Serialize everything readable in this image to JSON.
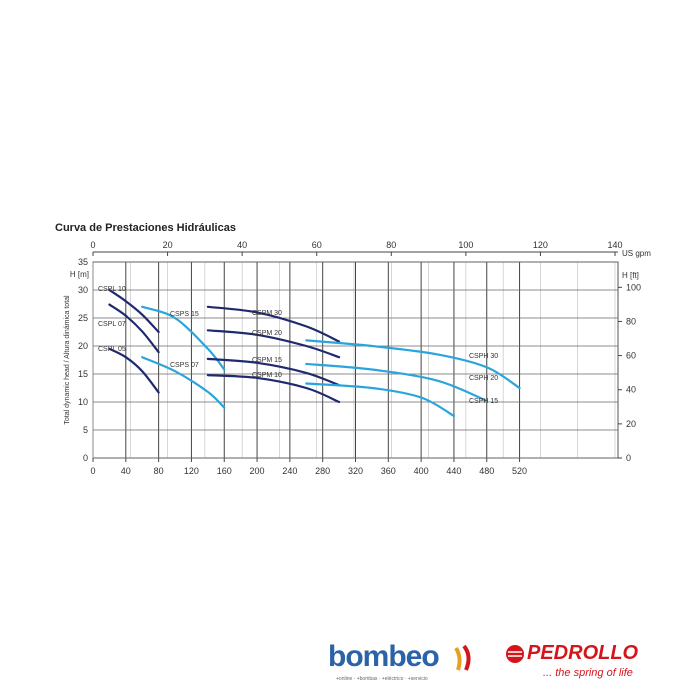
{
  "chart_data": {
    "type": "line",
    "title": "Curva de Prestaciones Hidráulicas",
    "xlabel": "",
    "ylabel": "Total dynamic head / Altura dinámica total",
    "left_axis_unit": "H [m]",
    "right_axis_unit": "H [ft]",
    "top_axis_unit": "US gpm",
    "xlim": [
      0,
      640
    ],
    "ylim": [
      0,
      35
    ],
    "x_ticks": [
      0,
      40,
      80,
      120,
      160,
      200,
      240,
      280,
      320,
      360,
      400,
      440,
      480,
      520
    ],
    "y_ticks": [
      0,
      5,
      10,
      15,
      20,
      25,
      30,
      35
    ],
    "top_ticks": [
      0,
      20,
      40,
      60,
      80,
      100,
      120,
      140
    ],
    "top_scale_gpm_per_x": 0.22,
    "right_ticks": [
      0,
      20,
      40,
      60,
      80,
      100
    ],
    "right_scale_ft_per_m": 3.281,
    "grid": true,
    "series": [
      {
        "name": "CSPL 10",
        "color": "#1f2a6e",
        "x": [
          20,
          40,
          60,
          80
        ],
        "y": [
          30,
          28,
          25.6,
          22.5
        ]
      },
      {
        "name": "CSPL 07",
        "color": "#1f2a6e",
        "x": [
          20,
          40,
          60,
          80
        ],
        "y": [
          27.4,
          25.4,
          22.6,
          18.9
        ]
      },
      {
        "name": "CSPL 05",
        "color": "#1f2a6e",
        "x": [
          20,
          40,
          60,
          80
        ],
        "y": [
          19.5,
          18.0,
          15.5,
          11.7
        ]
      },
      {
        "name": "CSPS 15",
        "color": "#2aa5dc",
        "x": [
          60,
          100,
          140,
          160
        ],
        "y": [
          27,
          25,
          19.5,
          15.8
        ]
      },
      {
        "name": "CSPS 07",
        "color": "#2aa5dc",
        "x": [
          60,
          100,
          140,
          160
        ],
        "y": [
          18,
          15.5,
          11.8,
          9
        ]
      },
      {
        "name": "CSPM 30",
        "color": "#1f2a6e",
        "x": [
          140,
          200,
          260,
          300
        ],
        "y": [
          27,
          26,
          23.5,
          20.8
        ]
      },
      {
        "name": "CSPM 20",
        "color": "#1f2a6e",
        "x": [
          140,
          200,
          260,
          300
        ],
        "y": [
          22.8,
          22,
          20,
          18
        ]
      },
      {
        "name": "CSPM 15",
        "color": "#1f2a6e",
        "x": [
          140,
          200,
          260,
          300
        ],
        "y": [
          17.7,
          17,
          15.2,
          13
        ]
      },
      {
        "name": "CSPM 10",
        "color": "#1f2a6e",
        "x": [
          140,
          200,
          260,
          300
        ],
        "y": [
          14.8,
          14.3,
          12.5,
          10
        ]
      },
      {
        "name": "CSPH 30",
        "color": "#2aa5dc",
        "x": [
          260,
          340,
          420,
          480,
          520
        ],
        "y": [
          21,
          20,
          18.5,
          16.2,
          12.5
        ]
      },
      {
        "name": "CSPH 20",
        "color": "#2aa5dc",
        "x": [
          260,
          340,
          420,
          480
        ],
        "y": [
          16.8,
          15.8,
          13.8,
          10.2
        ]
      },
      {
        "name": "CSPH 15",
        "color": "#2aa5dc",
        "x": [
          260,
          340,
          400,
          440
        ],
        "y": [
          13.3,
          12.5,
          10.8,
          7.5
        ]
      }
    ]
  },
  "logos": {
    "bombeo_word": "bombeo",
    "bombeo_tagline": "+online · +bombas · +eléctrico · +servicio",
    "pedrollo_word": "PEDROLLO",
    "pedrollo_tagline": "... the spring of life"
  }
}
